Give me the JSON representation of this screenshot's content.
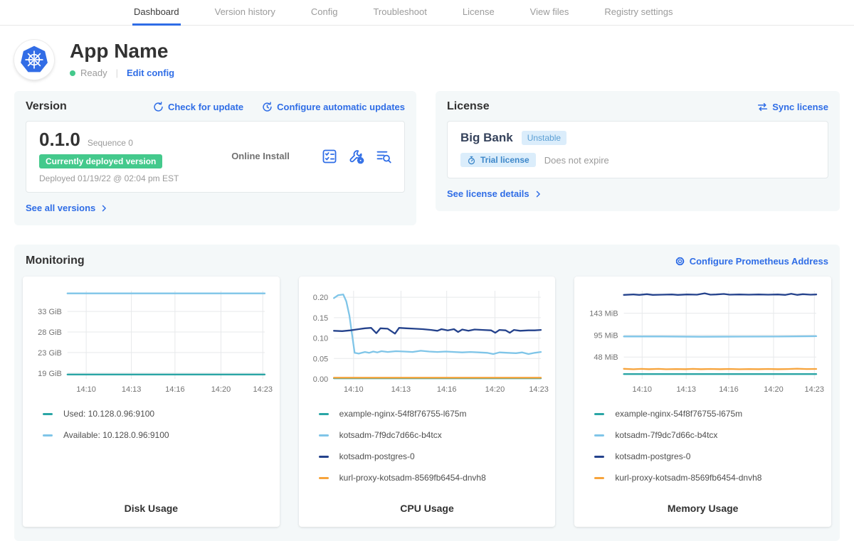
{
  "nav": {
    "tabs": [
      {
        "label": "Dashboard",
        "active": true
      },
      {
        "label": "Version history",
        "active": false
      },
      {
        "label": "Config",
        "active": false
      },
      {
        "label": "Troubleshoot",
        "active": false
      },
      {
        "label": "License",
        "active": false
      },
      {
        "label": "View files",
        "active": false
      },
      {
        "label": "Registry settings",
        "active": false
      }
    ]
  },
  "app": {
    "name": "App Name",
    "status": "Ready",
    "edit_config_label": "Edit config"
  },
  "version": {
    "heading": "Version",
    "check_update_label": "Check for update",
    "configure_updates_label": "Configure automatic updates",
    "number": "0.1.0",
    "sequence": "Sequence 0",
    "deployed_badge": "Currently deployed version",
    "deployed_at": "Deployed 01/19/22 @ 02:04 pm EST",
    "install_type": "Online Install",
    "see_all_label": "See all versions"
  },
  "license": {
    "heading": "License",
    "sync_label": "Sync license",
    "name": "Big Bank",
    "channel_badge": "Unstable",
    "type_badge": "Trial license",
    "expiry": "Does not expire",
    "see_details_label": "See license details"
  },
  "monitoring": {
    "heading": "Monitoring",
    "configure_label": "Configure Prometheus Address"
  },
  "colors": {
    "link_blue": "#2f6de6",
    "active_tab_underline": "#2f6de6",
    "status_green": "#44c98c",
    "deployed_badge_green": "#44c98c",
    "license_badge_bg": "#dbedfb",
    "series_teal": "#2aa5a5",
    "series_sky": "#7fc5e8",
    "series_navy": "#24428c",
    "series_orange": "#f7a43c",
    "card_bg": "#f4f8f9"
  },
  "chart_data": [
    {
      "type": "line",
      "title": "Disk Usage",
      "y_unit": "GiB",
      "y_range": [
        17.3,
        37.3
      ],
      "y_ticks": [
        {
          "label": "19 GiB",
          "v": 18.63
        },
        {
          "label": "23 GiB",
          "v": 23.28
        },
        {
          "label": "28 GiB",
          "v": 27.94
        },
        {
          "label": "33 GiB",
          "v": 32.6
        }
      ],
      "x_ticks": [
        {
          "label": "14:10",
          "f": 0.095
        },
        {
          "label": "14:13",
          "f": 0.324
        },
        {
          "label": "14:16",
          "f": 0.545
        },
        {
          "label": "14:20",
          "f": 0.778
        },
        {
          "label": "14:23",
          "f": 0.99
        }
      ],
      "series": [
        {
          "name": "Used: 10.128.0.96:9100",
          "color": "#2aa5a5",
          "points": [
            [
              0,
              18.3
            ],
            [
              0.5,
              18.3
            ],
            [
              1,
              18.3
            ]
          ]
        },
        {
          "name": "Available: 10.128.0.96:9100",
          "color": "#7fc5e8",
          "points": [
            [
              0,
              36.7
            ],
            [
              0.5,
              36.7
            ],
            [
              1,
              36.7
            ]
          ]
        }
      ]
    },
    {
      "type": "line",
      "title": "CPU Usage",
      "y_unit": "cores",
      "y_range": [
        0,
        0.216
      ],
      "y_ticks": [
        {
          "label": "0.00",
          "v": 0
        },
        {
          "label": "0.05",
          "v": 0.05
        },
        {
          "label": "0.10",
          "v": 0.1
        },
        {
          "label": "0.15",
          "v": 0.15
        },
        {
          "label": "0.20",
          "v": 0.2
        }
      ],
      "x_ticks": [
        {
          "label": "14:10",
          "f": 0.095
        },
        {
          "label": "14:13",
          "f": 0.324
        },
        {
          "label": "14:16",
          "f": 0.545
        },
        {
          "label": "14:20",
          "f": 0.778
        },
        {
          "label": "14:23",
          "f": 0.99
        }
      ],
      "series": [
        {
          "name": "example-nginx-54f8f76755-l675m",
          "color": "#2aa5a5",
          "points": [
            [
              0,
              0.0015
            ],
            [
              1,
              0.0015
            ]
          ]
        },
        {
          "name": "kotsadm-7f9dc7d66c-b4tcx",
          "color": "#7fc5e8",
          "points": [
            [
              0,
              0.198
            ],
            [
              0.02,
              0.205
            ],
            [
              0.045,
              0.207
            ],
            [
              0.06,
              0.19
            ],
            [
              0.075,
              0.155
            ],
            [
              0.09,
              0.1
            ],
            [
              0.1,
              0.064
            ],
            [
              0.12,
              0.062
            ],
            [
              0.15,
              0.066
            ],
            [
              0.17,
              0.064
            ],
            [
              0.19,
              0.067
            ],
            [
              0.21,
              0.065
            ],
            [
              0.23,
              0.068
            ],
            [
              0.26,
              0.066
            ],
            [
              0.3,
              0.068
            ],
            [
              0.34,
              0.067
            ],
            [
              0.38,
              0.066
            ],
            [
              0.42,
              0.069
            ],
            [
              0.46,
              0.067
            ],
            [
              0.5,
              0.066
            ],
            [
              0.54,
              0.067
            ],
            [
              0.58,
              0.066
            ],
            [
              0.62,
              0.065
            ],
            [
              0.66,
              0.066
            ],
            [
              0.7,
              0.065
            ],
            [
              0.74,
              0.064
            ],
            [
              0.77,
              0.061
            ],
            [
              0.8,
              0.065
            ],
            [
              0.84,
              0.064
            ],
            [
              0.88,
              0.063
            ],
            [
              0.91,
              0.065
            ],
            [
              0.94,
              0.061
            ],
            [
              0.97,
              0.064
            ],
            [
              1,
              0.066
            ]
          ]
        },
        {
          "name": "kotsadm-postgres-0",
          "color": "#24428c",
          "points": [
            [
              0,
              0.118
            ],
            [
              0.04,
              0.117
            ],
            [
              0.08,
              0.119
            ],
            [
              0.12,
              0.122
            ],
            [
              0.15,
              0.124
            ],
            [
              0.18,
              0.125
            ],
            [
              0.205,
              0.112
            ],
            [
              0.225,
              0.124
            ],
            [
              0.26,
              0.123
            ],
            [
              0.295,
              0.111
            ],
            [
              0.315,
              0.125
            ],
            [
              0.35,
              0.124
            ],
            [
              0.39,
              0.123
            ],
            [
              0.43,
              0.122
            ],
            [
              0.47,
              0.12
            ],
            [
              0.5,
              0.118
            ],
            [
              0.52,
              0.122
            ],
            [
              0.55,
              0.119
            ],
            [
              0.58,
              0.122
            ],
            [
              0.6,
              0.115
            ],
            [
              0.62,
              0.121
            ],
            [
              0.65,
              0.118
            ],
            [
              0.68,
              0.121
            ],
            [
              0.72,
              0.12
            ],
            [
              0.76,
              0.119
            ],
            [
              0.78,
              0.113
            ],
            [
              0.8,
              0.12
            ],
            [
              0.83,
              0.119
            ],
            [
              0.85,
              0.113
            ],
            [
              0.87,
              0.12
            ],
            [
              0.9,
              0.118
            ],
            [
              0.94,
              0.119
            ],
            [
              0.97,
              0.119
            ],
            [
              1,
              0.12
            ]
          ]
        },
        {
          "name": "kurl-proxy-kotsadm-8569fb6454-dnvh8",
          "color": "#f7a43c",
          "points": [
            [
              0,
              0.003
            ],
            [
              1,
              0.003
            ]
          ]
        }
      ]
    },
    {
      "type": "line",
      "title": "Memory Usage",
      "y_unit": "MiB",
      "y_range": [
        0,
        192
      ],
      "y_ticks": [
        {
          "label": "48 MiB",
          "v": 47.7
        },
        {
          "label": "95 MiB",
          "v": 95.4
        },
        {
          "label": "143 MiB",
          "v": 143.1
        }
      ],
      "x_ticks": [
        {
          "label": "14:10",
          "f": 0.095
        },
        {
          "label": "14:13",
          "f": 0.324
        },
        {
          "label": "14:16",
          "f": 0.545
        },
        {
          "label": "14:20",
          "f": 0.778
        },
        {
          "label": "14:23",
          "f": 0.99
        }
      ],
      "series": [
        {
          "name": "example-nginx-54f8f76755-l675m",
          "color": "#2aa5a5",
          "points": [
            [
              0,
              10.5
            ],
            [
              1,
              10.5
            ]
          ]
        },
        {
          "name": "kotsadm-7f9dc7d66c-b4tcx",
          "color": "#7fc5e8",
          "points": [
            [
              0,
              92.5
            ],
            [
              0.2,
              92.5
            ],
            [
              0.4,
              91.8
            ],
            [
              0.6,
              92.2
            ],
            [
              0.8,
              92.3
            ],
            [
              1,
              93
            ]
          ]
        },
        {
          "name": "kotsadm-postgres-0",
          "color": "#24428c",
          "points": [
            [
              0,
              183
            ],
            [
              0.05,
              184
            ],
            [
              0.08,
              183
            ],
            [
              0.12,
              184.5
            ],
            [
              0.15,
              183
            ],
            [
              0.2,
              183.5
            ],
            [
              0.25,
              184
            ],
            [
              0.28,
              183
            ],
            [
              0.33,
              184
            ],
            [
              0.38,
              183.5
            ],
            [
              0.42,
              186.5
            ],
            [
              0.45,
              183.5
            ],
            [
              0.48,
              184
            ],
            [
              0.52,
              185
            ],
            [
              0.55,
              183.5
            ],
            [
              0.6,
              184
            ],
            [
              0.65,
              183.5
            ],
            [
              0.7,
              184
            ],
            [
              0.75,
              183.5
            ],
            [
              0.8,
              184
            ],
            [
              0.84,
              183
            ],
            [
              0.87,
              185.5
            ],
            [
              0.9,
              183
            ],
            [
              0.93,
              184.5
            ],
            [
              0.97,
              183.5
            ],
            [
              1,
              184
            ]
          ]
        },
        {
          "name": "kurl-proxy-kotsadm-8569fb6454-dnvh8",
          "color": "#f7a43c",
          "points": [
            [
              0,
              22
            ],
            [
              0.05,
              21
            ],
            [
              0.09,
              21.8
            ],
            [
              0.13,
              21.2
            ],
            [
              0.18,
              21.8
            ],
            [
              0.22,
              21
            ],
            [
              0.27,
              21.5
            ],
            [
              0.32,
              21.2
            ],
            [
              0.36,
              21.8
            ],
            [
              0.4,
              21.2
            ],
            [
              0.45,
              21.6
            ],
            [
              0.5,
              21.2
            ],
            [
              0.55,
              21.6
            ],
            [
              0.6,
              21.1
            ],
            [
              0.65,
              21.5
            ],
            [
              0.7,
              21.2
            ],
            [
              0.75,
              21.6
            ],
            [
              0.8,
              21.2
            ],
            [
              0.85,
              21.5
            ],
            [
              0.9,
              22.3
            ],
            [
              0.95,
              21.5
            ],
            [
              1,
              21.6
            ]
          ]
        }
      ]
    }
  ]
}
